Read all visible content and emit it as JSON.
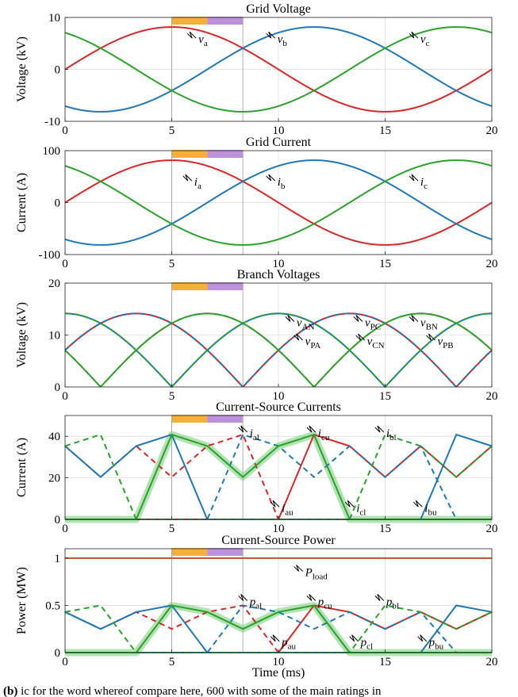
{
  "panel_label": "(b)",
  "caption_fragment": "ic for the word whereof compare here, 600 with some of the main ratings in",
  "colors": {
    "a": "#d62728",
    "b": "#1f77b4",
    "c": "#2ca02c",
    "load": "#b5532a",
    "highlight": "#7fd07f",
    "orange": "#f5a623",
    "purple": "#b07fd6"
  },
  "chart_data": [
    {
      "type": "line",
      "title": "Grid Voltage",
      "xlabel": "",
      "ylabel": "Voltage (kV)",
      "xlim": [
        0,
        20
      ],
      "ylim": [
        -10,
        10
      ],
      "yticks": [
        "10",
        "0",
        "-10"
      ],
      "xticks": [
        0,
        5,
        10,
        15,
        20
      ],
      "grid": true,
      "series": [
        {
          "name": "v_a",
          "color": "a",
          "function": "sine",
          "amplitude": 8.16,
          "phase_deg": 0
        },
        {
          "name": "v_b",
          "color": "b",
          "function": "sine",
          "amplitude": 8.16,
          "phase_deg": -120
        },
        {
          "name": "v_c",
          "color": "c",
          "function": "sine",
          "amplitude": 8.16,
          "phase_deg": 120
        }
      ],
      "annotations": [
        {
          "base": "v",
          "sub": "a",
          "x": 6.4,
          "y": 6.0
        },
        {
          "base": "v",
          "sub": "b",
          "x": 10.1,
          "y": 6.0
        },
        {
          "base": "v",
          "sub": "c",
          "x": 16.8,
          "y": 6.0
        }
      ]
    },
    {
      "type": "line",
      "title": "Grid Current",
      "xlabel": "",
      "ylabel": "Current (A)",
      "xlim": [
        0,
        20
      ],
      "ylim": [
        -100,
        100
      ],
      "yticks": [
        "100",
        "0",
        "-100"
      ],
      "xticks": [
        0,
        5,
        10,
        15,
        20
      ],
      "grid": true,
      "series": [
        {
          "name": "i_a",
          "color": "a",
          "function": "sine",
          "amplitude": 81.6,
          "phase_deg": 0
        },
        {
          "name": "i_b",
          "color": "b",
          "function": "sine",
          "amplitude": 81.6,
          "phase_deg": -120
        },
        {
          "name": "i_c",
          "color": "c",
          "function": "sine",
          "amplitude": 81.6,
          "phase_deg": 120
        }
      ],
      "annotations": [
        {
          "base": "i",
          "sub": "a",
          "x": 6.2,
          "y": 42
        },
        {
          "base": "i",
          "sub": "b",
          "x": 10.1,
          "y": 42
        },
        {
          "base": "i",
          "sub": "c",
          "x": 16.8,
          "y": 42
        }
      ]
    },
    {
      "type": "line",
      "title": "Branch Voltages",
      "xlabel": "",
      "ylabel": "Voltage (kV)",
      "xlim": [
        0,
        20
      ],
      "ylim": [
        0,
        20
      ],
      "yticks": [
        "20",
        "10",
        "0"
      ],
      "xticks": [
        0,
        5,
        10,
        15,
        20
      ],
      "grid": true,
      "series": [
        {
          "name": "v_PA",
          "color": "a",
          "dash": "solid",
          "function": "absdiff",
          "pair": [
            0,
            -120
          ],
          "amplitude": 14.14
        },
        {
          "name": "v_AN",
          "color": "a",
          "dash": "dashed",
          "function": "absdiff",
          "pair": [
            0,
            120
          ],
          "amplitude": 14.14
        },
        {
          "name": "v_PB",
          "color": "b",
          "dash": "solid",
          "function": "absdiff",
          "pair": [
            -120,
            120
          ],
          "amplitude": 14.14
        },
        {
          "name": "v_BN",
          "color": "b",
          "dash": "dashed",
          "function": "absdiff",
          "pair": [
            -120,
            0
          ],
          "amplitude": 14.14
        },
        {
          "name": "v_PC",
          "color": "c",
          "dash": "solid",
          "function": "absdiff",
          "pair": [
            120,
            0
          ],
          "amplitude": 14.14
        },
        {
          "name": "v_CN",
          "color": "c",
          "dash": "dashed",
          "function": "absdiff",
          "pair": [
            120,
            -120
          ],
          "amplitude": 14.14
        }
      ],
      "annotations": [
        {
          "base": "v",
          "sub": "AN",
          "x": 11.0,
          "y": 12.6
        },
        {
          "base": "v",
          "sub": "PC",
          "x": 14.2,
          "y": 12.6
        },
        {
          "base": "v",
          "sub": "BN",
          "x": 16.8,
          "y": 12.6
        },
        {
          "base": "v",
          "sub": "PA",
          "x": 11.4,
          "y": 9.0
        },
        {
          "base": "v",
          "sub": "CN",
          "x": 14.3,
          "y": 9.0
        },
        {
          "base": "v",
          "sub": "PB",
          "x": 17.6,
          "y": 9.0
        }
      ]
    },
    {
      "type": "line",
      "title": "Current-Source Currents",
      "xlabel": "",
      "ylabel": "Current (A)",
      "xlim": [
        0,
        20
      ],
      "ylim": [
        0,
        50
      ],
      "yticks": [
        "40",
        "20",
        "0"
      ],
      "xticks": [
        0,
        5,
        10,
        15,
        20
      ],
      "grid": true,
      "series": [
        {
          "name": "i_au",
          "color": "a",
          "dash": "solid",
          "x": [
            0,
            1.667,
            3.333,
            5,
            6.667,
            8.333,
            10,
            11.667,
            13.333,
            15,
            16.667,
            18.333,
            20
          ],
          "y": [
            0,
            0,
            0,
            0,
            0,
            0,
            0,
            40.8,
            35.3,
            20.4,
            35.3,
            20.4,
            35.3
          ]
        },
        {
          "name": "i_al",
          "color": "a",
          "dash": "dashed",
          "x": [
            0,
            1.667,
            3.333,
            5,
            6.667,
            8.333,
            10,
            11.667,
            13.333,
            15,
            16.667,
            18.333,
            20
          ],
          "y": [
            35.3,
            20.4,
            35.3,
            20.4,
            35.3,
            40.8,
            0,
            0,
            0,
            0,
            0,
            0,
            0
          ]
        },
        {
          "name": "i_bu",
          "color": "b",
          "dash": "solid",
          "x": [
            0,
            1.667,
            3.333,
            5,
            6.667,
            8.333,
            10,
            11.667,
            13.333,
            15,
            16.667,
            18.333,
            20
          ],
          "y": [
            35.3,
            20.4,
            35.3,
            40.8,
            0,
            0,
            0,
            0,
            0,
            0,
            0,
            40.8,
            35.3
          ]
        },
        {
          "name": "i_bl",
          "color": "b",
          "dash": "dashed",
          "x": [
            0,
            1.667,
            3.333,
            5,
            6.667,
            8.333,
            10,
            11.667,
            13.333,
            15,
            16.667,
            18.333,
            20
          ],
          "y": [
            0,
            0,
            0,
            0,
            0,
            40.8,
            35.3,
            20.4,
            35.3,
            20.4,
            35.3,
            0,
            0
          ]
        },
        {
          "name": "i_cu",
          "color": "c",
          "dash": "solid",
          "x": [
            0,
            1.667,
            3.333,
            5,
            6.667,
            8.333,
            10,
            11.667,
            13.333,
            15,
            16.667,
            18.333,
            20
          ],
          "y": [
            0,
            0,
            0,
            40.8,
            35.3,
            20.4,
            35.3,
            40.8,
            0,
            0,
            0,
            0,
            0
          ]
        },
        {
          "name": "i_cl",
          "color": "c",
          "dash": "dashed",
          "x": [
            0,
            1.667,
            3.333,
            5,
            6.667,
            8.333,
            10,
            11.667,
            13.333,
            15,
            16.667,
            18.333,
            20
          ],
          "y": [
            35.3,
            40.8,
            0,
            0,
            0,
            0,
            0,
            0,
            0,
            40.8,
            35.3,
            20.4,
            35.3
          ]
        }
      ],
      "annotations": [
        {
          "base": "i",
          "sub": "al",
          "x": 8.8,
          "y": 42
        },
        {
          "base": "i",
          "sub": "cu",
          "x": 12.0,
          "y": 42
        },
        {
          "base": "i",
          "sub": "bl",
          "x": 15.2,
          "y": 42
        },
        {
          "base": "i",
          "sub": "au",
          "x": 10.3,
          "y": 6
        },
        {
          "base": "i",
          "sub": "cl",
          "x": 13.8,
          "y": 6
        },
        {
          "base": "i",
          "sub": "bu",
          "x": 17.0,
          "y": 6
        }
      ]
    },
    {
      "type": "line",
      "title": "Current-Source Power",
      "xlabel": "Time (ms)",
      "ylabel": "Power (MW)",
      "xlim": [
        0,
        20
      ],
      "ylim": [
        0,
        1.1
      ],
      "yticks": [
        "1",
        "0.5",
        "0"
      ],
      "xticks": [
        0,
        5,
        10,
        15,
        20
      ],
      "grid": true,
      "series": [
        {
          "name": "P_load",
          "color": "load",
          "dash": "solid",
          "x": [
            0,
            20
          ],
          "y": [
            1,
            1
          ]
        },
        {
          "name": "p_au",
          "color": "a",
          "dash": "solid",
          "x": [
            0,
            1.667,
            3.333,
            5,
            6.667,
            8.333,
            10,
            11.667,
            13.333,
            15,
            16.667,
            18.333,
            20
          ],
          "y": [
            0,
            0,
            0,
            0,
            0,
            0,
            0,
            0.5,
            0.43,
            0.25,
            0.43,
            0.25,
            0.43
          ]
        },
        {
          "name": "p_al",
          "color": "a",
          "dash": "dashed",
          "x": [
            0,
            1.667,
            3.333,
            5,
            6.667,
            8.333,
            10,
            11.667,
            13.333,
            15,
            16.667,
            18.333,
            20
          ],
          "y": [
            0.43,
            0.25,
            0.43,
            0.25,
            0.43,
            0.5,
            0,
            0,
            0,
            0,
            0,
            0,
            0
          ]
        },
        {
          "name": "p_bu",
          "color": "b",
          "dash": "solid",
          "x": [
            0,
            1.667,
            3.333,
            5,
            6.667,
            8.333,
            10,
            11.667,
            13.333,
            15,
            16.667,
            18.333,
            20
          ],
          "y": [
            0.43,
            0.25,
            0.43,
            0.5,
            0,
            0,
            0,
            0,
            0,
            0,
            0,
            0.5,
            0.43
          ]
        },
        {
          "name": "p_bl",
          "color": "b",
          "dash": "dashed",
          "x": [
            0,
            1.667,
            3.333,
            5,
            6.667,
            8.333,
            10,
            11.667,
            13.333,
            15,
            16.667,
            18.333,
            20
          ],
          "y": [
            0,
            0,
            0,
            0,
            0,
            0.5,
            0.43,
            0.25,
            0.43,
            0.25,
            0.43,
            0,
            0
          ]
        },
        {
          "name": "p_cu",
          "color": "c",
          "dash": "solid",
          "x": [
            0,
            1.667,
            3.333,
            5,
            6.667,
            8.333,
            10,
            11.667,
            13.333,
            15,
            16.667,
            18.333,
            20
          ],
          "y": [
            0,
            0,
            0,
            0.5,
            0.43,
            0.25,
            0.43,
            0.5,
            0,
            0,
            0,
            0,
            0
          ]
        },
        {
          "name": "p_cl",
          "color": "c",
          "dash": "dashed",
          "x": [
            0,
            1.667,
            3.333,
            5,
            6.667,
            8.333,
            10,
            11.667,
            13.333,
            15,
            16.667,
            18.333,
            20
          ],
          "y": [
            0.43,
            0.5,
            0,
            0,
            0,
            0,
            0,
            0,
            0,
            0.5,
            0.43,
            0.25,
            0.43
          ]
        }
      ],
      "annotations": [
        {
          "base": "P",
          "sub": "load",
          "x": 11.4,
          "y": 0.86
        },
        {
          "base": "p",
          "sub": "al",
          "x": 8.8,
          "y": 0.55
        },
        {
          "base": "p",
          "sub": "cu",
          "x": 12.0,
          "y": 0.55
        },
        {
          "base": "p",
          "sub": "bl",
          "x": 15.2,
          "y": 0.55
        },
        {
          "base": "p",
          "sub": "au",
          "x": 10.3,
          "y": 0.12
        },
        {
          "base": "p",
          "sub": "cl",
          "x": 14.0,
          "y": 0.12
        },
        {
          "base": "p",
          "sub": "bu",
          "x": 17.2,
          "y": 0.12
        }
      ]
    }
  ]
}
